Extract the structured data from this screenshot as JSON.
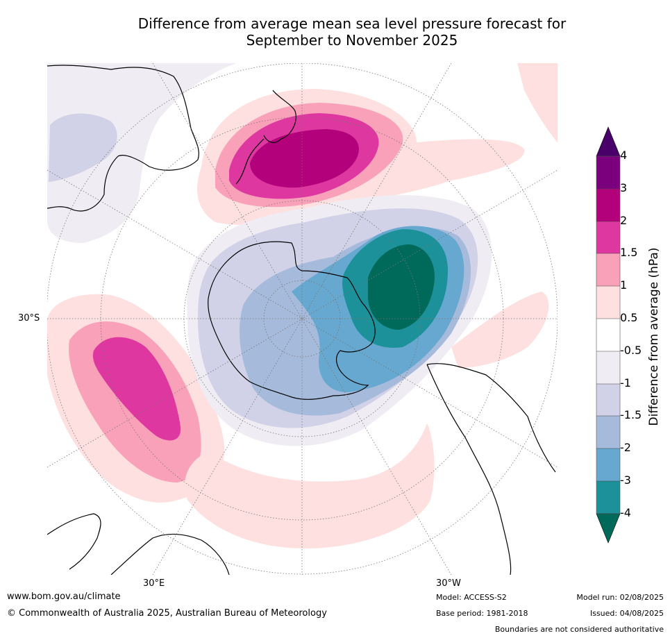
{
  "title_line1": "Difference from average mean sea level pressure forecast for",
  "title_line2": "September to November 2025",
  "labels": {
    "lat": "30°S",
    "lon_east": "30°E",
    "lon_west": "30°W"
  },
  "colorbar": {
    "title": "Difference from average (hPa)",
    "ticks": [
      "4",
      "3",
      "2",
      "1.5",
      "1",
      "0.5",
      "-0.5",
      "-1",
      "-1.5",
      "-2",
      "-3",
      "-4"
    ],
    "colors": [
      "#4a0069",
      "#7b007d",
      "#b3017b",
      "#de37a0",
      "#f9a1b9",
      "#fde0df",
      "#ffffff",
      "#f0ecf3",
      "#d1d2e7",
      "#a6bbdb",
      "#66a8cf",
      "#1c9199",
      "#006a5a"
    ]
  },
  "footer": {
    "website": "www.bom.gov.au/climate",
    "copyright": "© Commonwealth of Australia 2025, Australian Bureau of Meteorology",
    "model": "Model: ACCESS-S2",
    "base_period": "Base period: 1981-2018",
    "model_run": "Model run: 02/08/2025",
    "issued": "Issued: 04/08/2025",
    "disclaimer": "Boundaries are not considered authoritative"
  }
}
